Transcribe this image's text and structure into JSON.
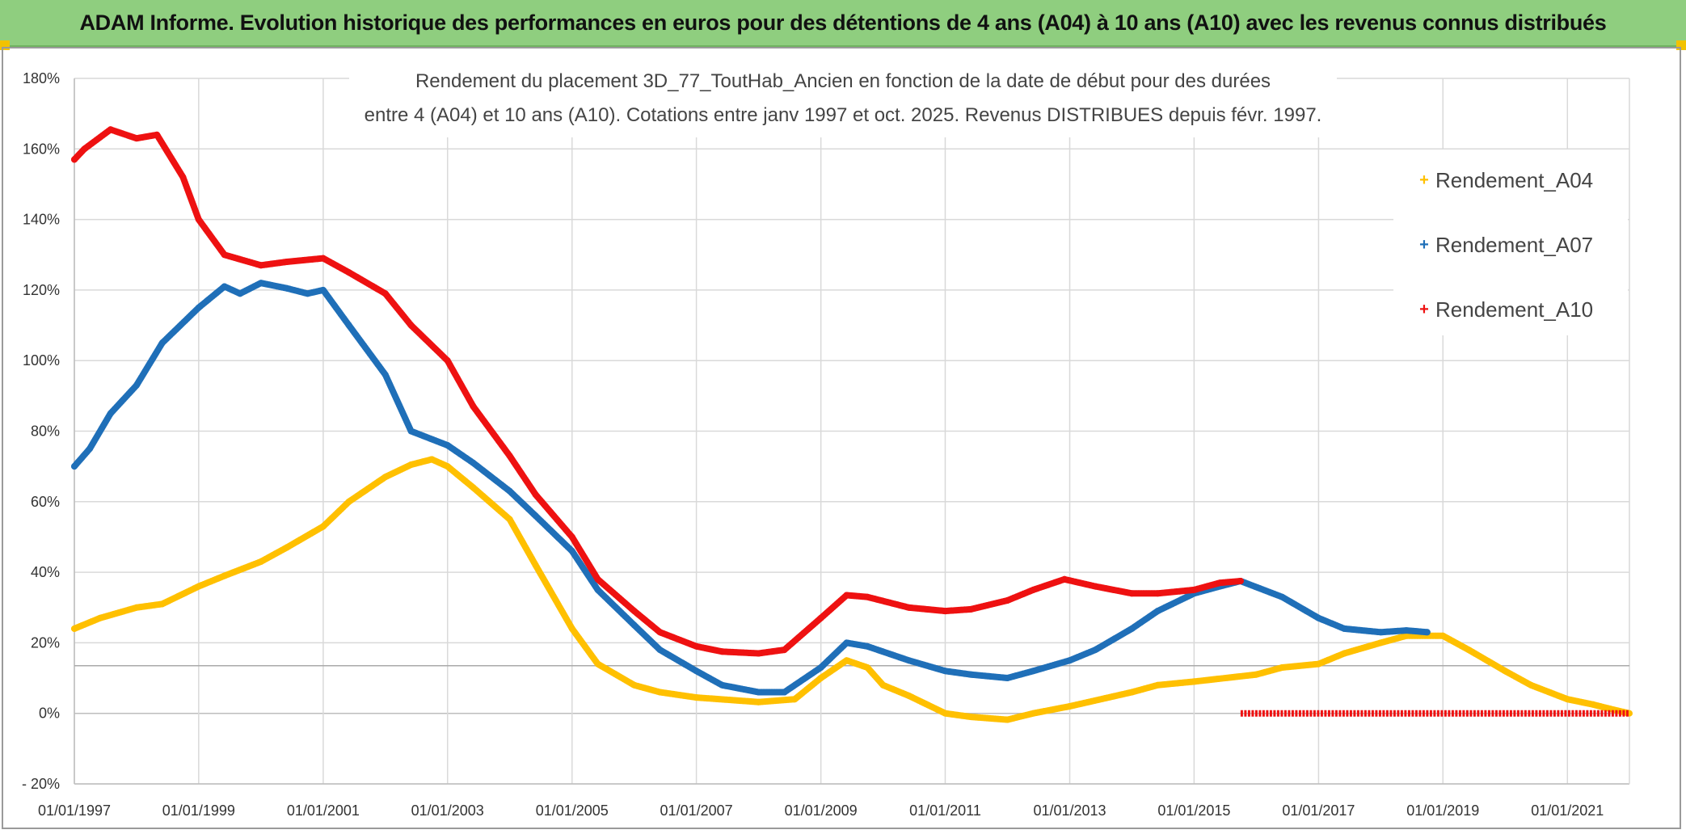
{
  "banner": {
    "title": "ADAM Informe. Evolution historique des performances en euros pour des détentions de 4 ans (A04) à 10 ans (A10) avec les revenus connus distribués",
    "background": "#8fce7f"
  },
  "chart_data": {
    "type": "scatter",
    "title_line1": "Rendement du placement 3D_77_ToutHab_Ancien en fonction de la date de début pour des durées",
    "title_line2": "entre 4 (A04) et 10 ans (A10). Cotations entre janv 1997 et oct. 2025. Revenus DISTRIBUES depuis févr. 1997.",
    "xlabel": "",
    "ylabel": "",
    "x_range": [
      "1997-01-01",
      "2021-12-31"
    ],
    "ylim": [
      -20,
      180
    ],
    "y_ticks": [
      -20,
      0,
      20,
      40,
      60,
      80,
      100,
      120,
      140,
      160,
      180
    ],
    "y_tick_labels": [
      "- 20%",
      "0%",
      "20%",
      "40%",
      "60%",
      "80%",
      "100%",
      "120%",
      "140%",
      "160%",
      "180%"
    ],
    "x_ticks": [
      "1997-01-01",
      "1999-01-01",
      "2001-01-01",
      "2003-01-01",
      "2005-01-01",
      "2007-01-01",
      "2009-01-01",
      "2011-01-01",
      "2013-01-01",
      "2015-01-01",
      "2017-01-01",
      "2019-01-01",
      "2021-01-01"
    ],
    "x_tick_labels": [
      "01/01/1997",
      "01/01/1999",
      "01/01/2001",
      "01/01/2003",
      "01/01/2005",
      "01/01/2007",
      "01/01/2009",
      "01/01/2011",
      "01/01/2013",
      "01/01/2015",
      "01/01/2017",
      "01/01/2019",
      "01/01/2021"
    ],
    "grid": true,
    "legend_position": "top-right",
    "series": [
      {
        "name": "Rendement_A04",
        "color": "#ffc000",
        "points": [
          [
            "1997-01-01",
            24
          ],
          [
            "1997-06-01",
            27
          ],
          [
            "1998-01-01",
            30
          ],
          [
            "1998-06-01",
            31
          ],
          [
            "1999-01-01",
            36
          ],
          [
            "1999-06-01",
            39
          ],
          [
            "2000-01-01",
            43
          ],
          [
            "2000-06-01",
            47
          ],
          [
            "2001-01-01",
            53
          ],
          [
            "2001-06-01",
            60
          ],
          [
            "2002-01-01",
            67
          ],
          [
            "2002-06-01",
            70.5
          ],
          [
            "2002-10-01",
            72
          ],
          [
            "2003-01-01",
            70
          ],
          [
            "2003-06-01",
            64
          ],
          [
            "2004-01-01",
            55
          ],
          [
            "2004-06-01",
            42
          ],
          [
            "2005-01-01",
            24
          ],
          [
            "2005-06-01",
            14
          ],
          [
            "2006-01-01",
            8
          ],
          [
            "2006-06-01",
            6
          ],
          [
            "2007-01-01",
            4.5
          ],
          [
            "2008-01-01",
            3.2
          ],
          [
            "2008-08-01",
            4
          ],
          [
            "2009-01-01",
            10
          ],
          [
            "2009-06-01",
            15
          ],
          [
            "2009-10-01",
            13
          ],
          [
            "2010-01-01",
            8
          ],
          [
            "2010-06-01",
            5
          ],
          [
            "2011-01-01",
            0
          ],
          [
            "2011-06-01",
            -1
          ],
          [
            "2012-01-01",
            -1.8
          ],
          [
            "2012-06-01",
            0
          ],
          [
            "2013-01-01",
            2
          ],
          [
            "2014-01-01",
            6
          ],
          [
            "2014-06-01",
            8
          ],
          [
            "2015-01-01",
            9
          ],
          [
            "2016-01-01",
            11
          ],
          [
            "2016-06-01",
            13
          ],
          [
            "2017-01-01",
            14
          ],
          [
            "2017-06-01",
            17
          ],
          [
            "2018-01-01",
            20
          ],
          [
            "2018-06-01",
            22
          ],
          [
            "2019-01-01",
            22
          ],
          [
            "2019-06-01",
            18
          ],
          [
            "2020-01-01",
            12
          ],
          [
            "2020-06-01",
            8
          ],
          [
            "2021-01-01",
            4
          ],
          [
            "2021-06-01",
            2.5
          ],
          [
            "2021-10-01",
            1
          ],
          [
            "2021-12-31",
            0
          ]
        ]
      },
      {
        "name": "Rendement_A07",
        "color": "#1f6fb8",
        "points": [
          [
            "1997-01-01",
            70
          ],
          [
            "1997-04-01",
            75
          ],
          [
            "1997-08-01",
            85
          ],
          [
            "1998-01-01",
            93
          ],
          [
            "1998-06-01",
            105
          ],
          [
            "1999-01-01",
            115
          ],
          [
            "1999-06-01",
            121
          ],
          [
            "1999-09-01",
            119
          ],
          [
            "2000-01-01",
            122
          ],
          [
            "2000-06-01",
            120.5
          ],
          [
            "2000-10-01",
            119
          ],
          [
            "2001-01-01",
            120
          ],
          [
            "2001-06-01",
            110
          ],
          [
            "2002-01-01",
            96
          ],
          [
            "2002-06-01",
            80
          ],
          [
            "2003-01-01",
            76
          ],
          [
            "2003-06-01",
            71
          ],
          [
            "2004-01-01",
            63
          ],
          [
            "2004-06-01",
            56
          ],
          [
            "2005-01-01",
            46
          ],
          [
            "2005-06-01",
            35
          ],
          [
            "2006-01-01",
            25
          ],
          [
            "2006-06-01",
            18
          ],
          [
            "2007-01-01",
            12
          ],
          [
            "2007-06-01",
            8
          ],
          [
            "2008-01-01",
            6
          ],
          [
            "2008-06-01",
            6
          ],
          [
            "2009-01-01",
            13
          ],
          [
            "2009-06-01",
            20
          ],
          [
            "2009-10-01",
            19
          ],
          [
            "2010-06-01",
            15
          ],
          [
            "2011-01-01",
            12
          ],
          [
            "2011-06-01",
            11
          ],
          [
            "2012-01-01",
            10
          ],
          [
            "2012-06-01",
            12
          ],
          [
            "2013-01-01",
            15
          ],
          [
            "2013-06-01",
            18
          ],
          [
            "2014-01-01",
            24
          ],
          [
            "2014-06-01",
            29
          ],
          [
            "2015-01-01",
            34
          ],
          [
            "2015-06-01",
            36
          ],
          [
            "2015-10-01",
            37.5
          ],
          [
            "2016-06-01",
            33
          ],
          [
            "2017-01-01",
            27
          ],
          [
            "2017-06-01",
            24
          ],
          [
            "2018-01-01",
            23
          ],
          [
            "2018-06-01",
            23.5
          ],
          [
            "2018-10-01",
            23
          ]
        ]
      },
      {
        "name": "Rendement_A10",
        "color": "#ee1111",
        "points": [
          [
            "1997-01-01",
            157
          ],
          [
            "1997-03-01",
            160
          ],
          [
            "1997-08-01",
            165.5
          ],
          [
            "1998-01-01",
            163
          ],
          [
            "1998-05-01",
            164
          ],
          [
            "1998-10-01",
            152
          ],
          [
            "1999-01-01",
            140
          ],
          [
            "1999-06-01",
            130
          ],
          [
            "2000-01-01",
            127
          ],
          [
            "2000-06-01",
            128
          ],
          [
            "2001-01-01",
            129
          ],
          [
            "2001-06-01",
            125
          ],
          [
            "2002-01-01",
            119
          ],
          [
            "2002-06-01",
            110
          ],
          [
            "2003-01-01",
            100
          ],
          [
            "2003-06-01",
            87
          ],
          [
            "2004-01-01",
            73
          ],
          [
            "2004-06-01",
            62
          ],
          [
            "2005-01-01",
            50
          ],
          [
            "2005-06-01",
            38
          ],
          [
            "2006-01-01",
            29
          ],
          [
            "2006-06-01",
            23
          ],
          [
            "2007-01-01",
            19
          ],
          [
            "2007-06-01",
            17.5
          ],
          [
            "2008-01-01",
            17
          ],
          [
            "2008-06-01",
            18
          ],
          [
            "2009-01-01",
            27
          ],
          [
            "2009-06-01",
            33.5
          ],
          [
            "2009-10-01",
            33
          ],
          [
            "2010-06-01",
            30
          ],
          [
            "2011-01-01",
            29
          ],
          [
            "2011-06-01",
            29.5
          ],
          [
            "2012-01-01",
            32
          ],
          [
            "2012-06-01",
            35
          ],
          [
            "2012-12-01",
            38
          ],
          [
            "2013-06-01",
            36
          ],
          [
            "2014-01-01",
            34
          ],
          [
            "2014-06-01",
            34
          ],
          [
            "2015-01-01",
            35
          ],
          [
            "2015-06-01",
            37
          ],
          [
            "2015-10-01",
            37.5
          ]
        ],
        "flat_segment": [
          [
            "2015-10-01",
            0
          ],
          [
            "2021-12-31",
            0
          ]
        ]
      }
    ]
  }
}
